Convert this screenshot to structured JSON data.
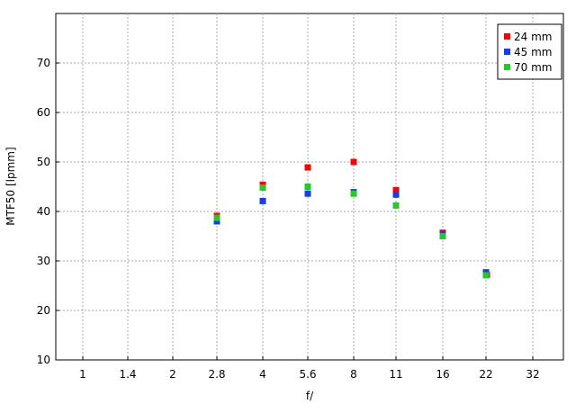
{
  "chart_data": {
    "type": "scatter",
    "xlabel": "f/",
    "ylabel": "MTF50 [lpmm]",
    "x_categories": [
      "1",
      "1.4",
      "2",
      "2.8",
      "4",
      "5.6",
      "8",
      "11",
      "16",
      "22",
      "32"
    ],
    "ylim": [
      10,
      80
    ],
    "yticks": [
      10,
      20,
      30,
      40,
      50,
      60,
      70
    ],
    "grid": true,
    "legend_position": "top-right",
    "series": [
      {
        "name": "24 mm",
        "color": "#ff0000",
        "x": [
          "2.8",
          "4",
          "5.6",
          "8",
          "11",
          "16",
          "22"
        ],
        "y": [
          39.1,
          45.4,
          48.9,
          50.0,
          44.3,
          35.7,
          27.2
        ]
      },
      {
        "name": "45 mm",
        "color": "#1a3ce6",
        "x": [
          "2.8",
          "4",
          "5.6",
          "8",
          "11",
          "16",
          "22"
        ],
        "y": [
          38.0,
          42.1,
          43.6,
          43.9,
          43.4,
          35.4,
          27.7
        ]
      },
      {
        "name": "70 mm",
        "color": "#22cc22",
        "x": [
          "2.8",
          "4",
          "5.6",
          "8",
          "11",
          "16",
          "22"
        ],
        "y": [
          38.7,
          44.8,
          45.0,
          43.6,
          41.2,
          35.0,
          27.1
        ]
      }
    ]
  }
}
